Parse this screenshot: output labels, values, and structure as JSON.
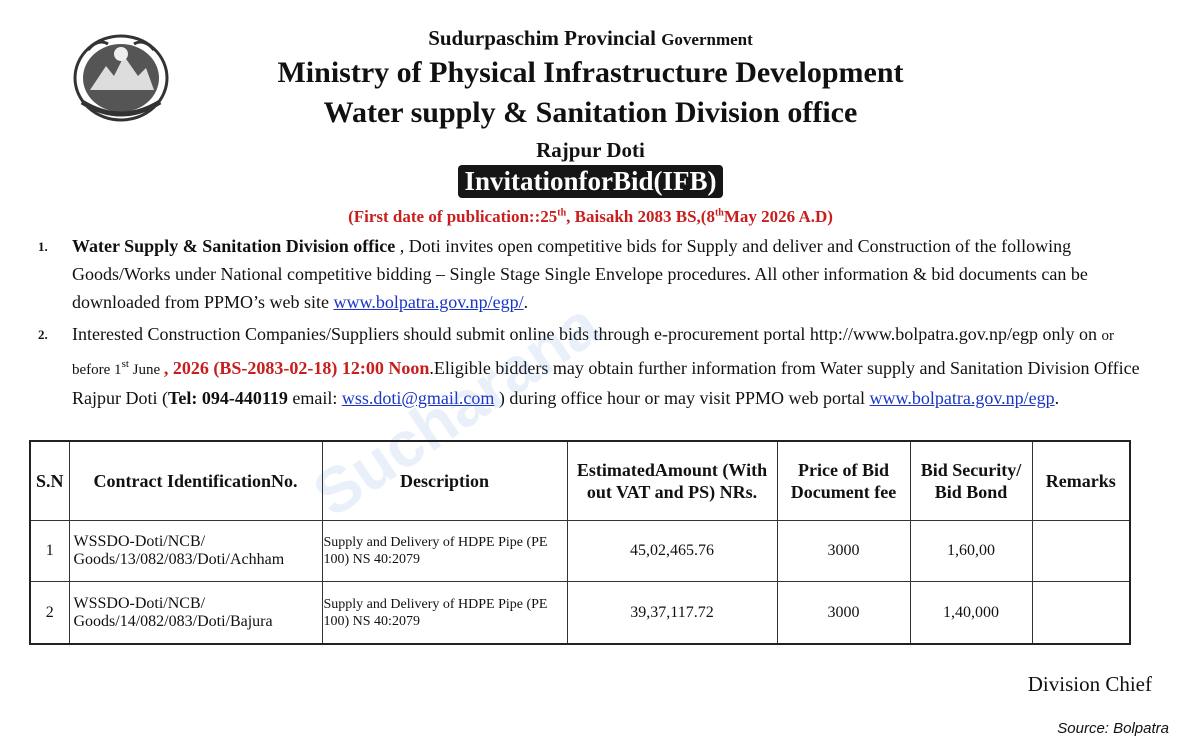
{
  "header": {
    "line1_main": "Sudurpaschim Provincial",
    "line1_small": "Government",
    "ministry": "Ministry of Physical Infrastructure Development",
    "office": "Water supply & Sanitation Division office",
    "location": "Rajpur Doti",
    "notice_title": "InvitationforBid(IFB)",
    "publication": {
      "prefix": "(First date of publication::25",
      "sup1": "th",
      "middle": ", Baisakh 2083 BS,(8",
      "sup2": "th",
      "suffix": "May 2026 A.D)"
    }
  },
  "paragraph1": {
    "number": "1.",
    "office_bold": "Water Supply & Sanitation Division office",
    "text": " , Doti  invites open competitive bids for Supply and deliver and Construction of the following Goods/Works under National competitive bidding – Single Stage Single Envelope procedures. All other information & bid documents can be downloaded from PPMO’s web site ",
    "link": "www.bolpatra.gov.np/egp/",
    "end": "."
  },
  "paragraph2": {
    "number": "2.",
    "text1": "Interested Construction Companies/Suppliers should submit online bids through e-procurement portal http://www.bolpatra.gov.np/egp only on ",
    "before": "or before 1",
    "sup": "st",
    "june": " June ",
    "deadline": ", 2026 (BS-2083-02-18)  12:00 Noon",
    "text2": ".Eligible bidders may obtain further information from Water supply and Sanitation Division Office Rajpur Doti (",
    "tel": "Tel: 094-440119",
    "email_label": " email: ",
    "email": "wss.doti@gmail.com",
    "text3": " ) during office hour or may visit PPMO web portal ",
    "portal": "www.bolpatra.gov.np/egp",
    "end": "."
  },
  "table": {
    "headers": {
      "sn": "S.N",
      "contract": "Contract IdentificationNo.",
      "description": "Description",
      "amount": "EstimatedAmount (With out VAT and PS) NRs.",
      "price": "Price of Bid Document fee",
      "security": "Bid Security/ Bid Bond",
      "remarks": "Remarks"
    },
    "rows": [
      {
        "sn": "1",
        "contract": "WSSDO-Doti/NCB/ Goods/13/082/083/Doti/Achham",
        "description": "Supply and Delivery of HDPE Pipe (PE 100) NS 40:2079",
        "amount": "45,02,465.76",
        "price": "3000",
        "security": "1,60,00",
        "remarks": ""
      },
      {
        "sn": "2",
        "contract": "WSSDO-Doti/NCB/ Goods/14/082/083/Doti/Bajura",
        "description": "Supply and Delivery of HDPE Pipe (PE 100) NS 40:2079",
        "amount": "39,37,117.72",
        "price": "3000",
        "security": "1,40,000",
        "remarks": ""
      }
    ]
  },
  "signature": "Division Chief",
  "source": "Source: Bolpatra",
  "watermark": "Sucharana"
}
